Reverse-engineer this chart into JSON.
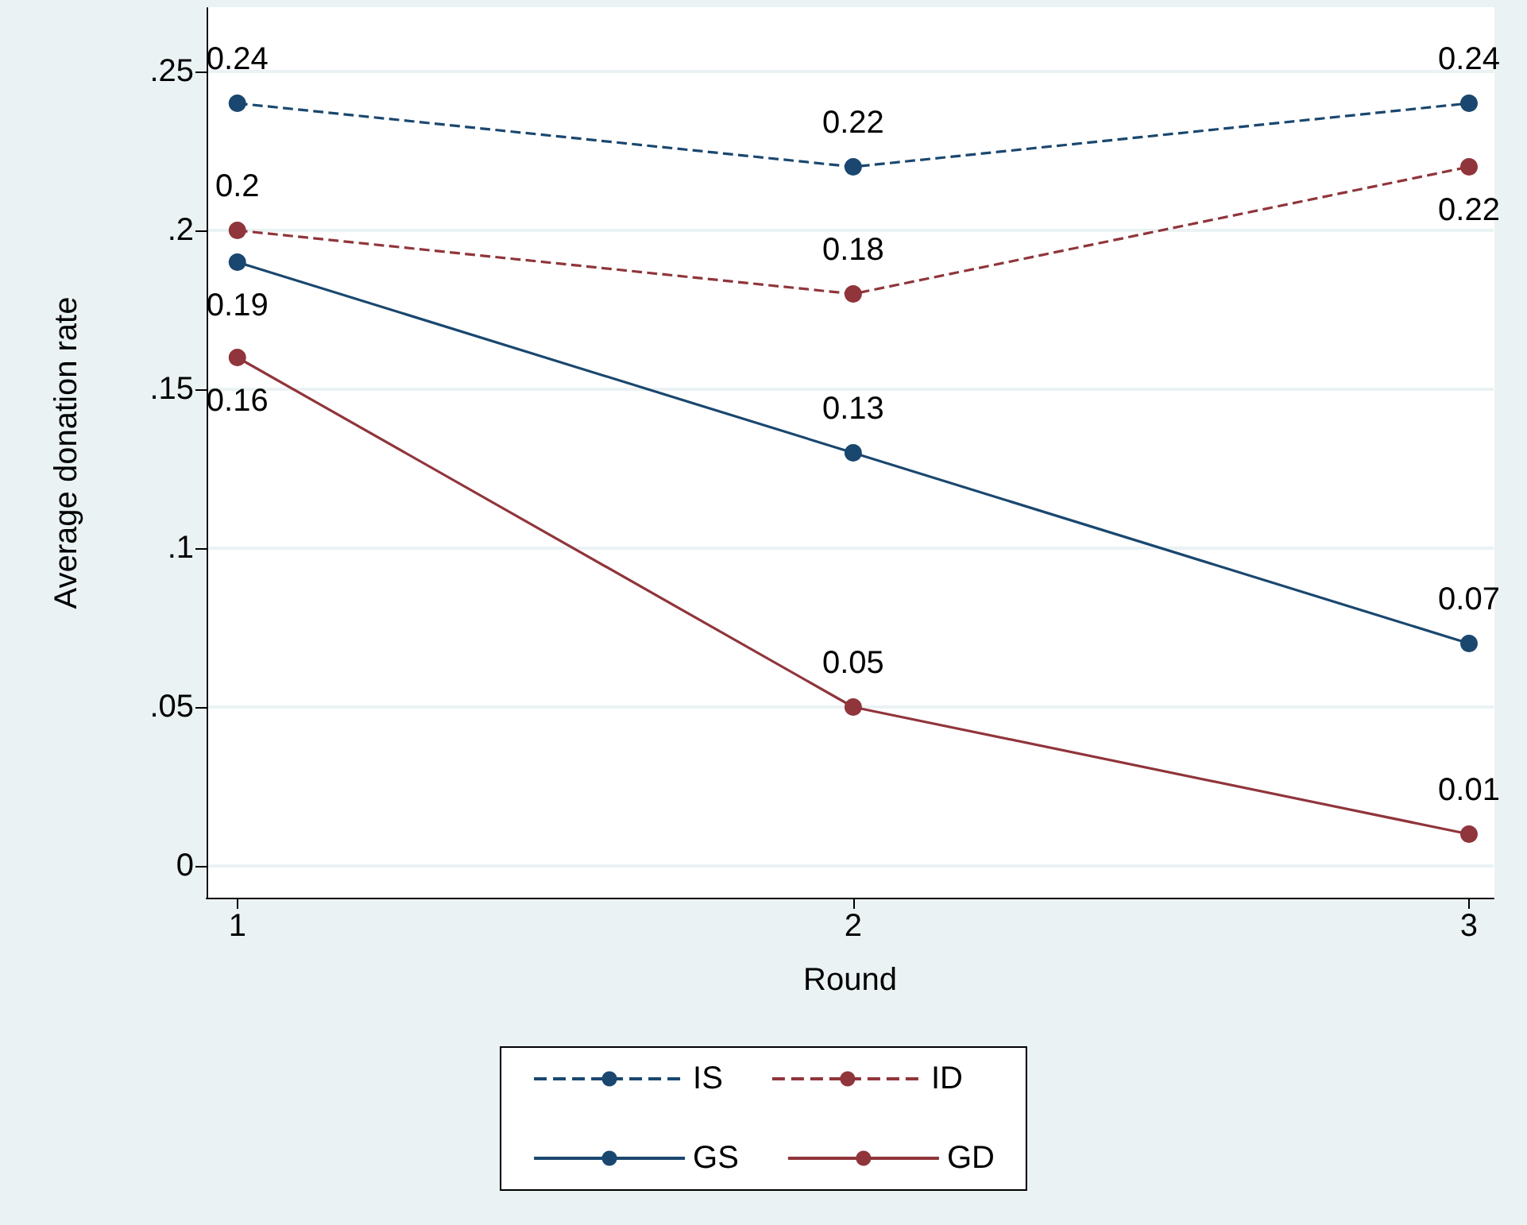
{
  "chart_data": {
    "type": "line",
    "xlabel": "Round",
    "ylabel": "Average donation rate",
    "x": [
      1,
      2,
      3
    ],
    "series": [
      {
        "name": "IS",
        "color": "#1a476f",
        "line_style": "dashed",
        "values": [
          0.24,
          0.22,
          0.24
        ]
      },
      {
        "name": "ID",
        "color": "#90353b",
        "line_style": "dashed",
        "values": [
          0.2,
          0.18,
          0.22
        ]
      },
      {
        "name": "GS",
        "color": "#1a476f",
        "line_style": "solid",
        "values": [
          0.19,
          0.13,
          0.07
        ]
      },
      {
        "name": "GD",
        "color": "#90353b",
        "line_style": "solid",
        "values": [
          0.16,
          0.05,
          0.01
        ]
      }
    ],
    "xlim": [
      0.95,
      3.04
    ],
    "xticks": [
      1,
      2,
      3
    ],
    "ylim": [
      -0.01,
      0.27
    ],
    "yticks": [
      {
        "value": 0,
        "label": "0"
      },
      {
        "value": 0.05,
        "label": ".05"
      },
      {
        "value": 0.1,
        "label": ".1"
      },
      {
        "value": 0.15,
        "label": ".15"
      },
      {
        "value": 0.2,
        "label": ".2"
      },
      {
        "value": 0.25,
        "label": ".25"
      }
    ],
    "grid": "y",
    "legend": "bottom",
    "marker": "circle",
    "data_labels": true
  }
}
